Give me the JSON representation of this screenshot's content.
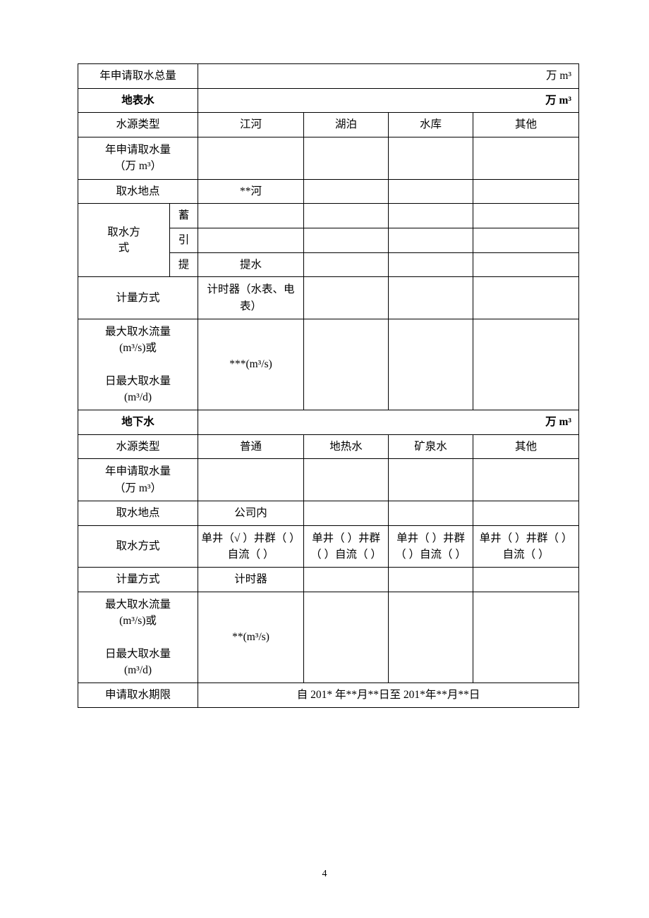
{
  "unit_wan_m3": "万 m³",
  "rows": {
    "annual_total_label": "年申请取水总量",
    "surface_water_label": "地表水",
    "source_type_label": "水源类型",
    "surface_types": {
      "river": "江河",
      "lake": "湖泊",
      "reservoir": "水库",
      "other": "其他"
    },
    "annual_apply_vol_label_l1": "年申请取水量",
    "annual_apply_vol_label_l2": "（万 m³）",
    "intake_location_label": "取水地点",
    "surface_intake_location": "**河",
    "intake_method_label": "取水方式",
    "intake_method_label_l1": "取水方",
    "intake_method_label_l2": "式",
    "method_store": "蓄",
    "method_divert": "引",
    "method_pump": "提",
    "method_pump_val": "提水",
    "measure_method_label": "计量方式",
    "surface_measure": "计时器（水表、电表）",
    "max_flow_label_l1": "最大取水流量",
    "max_flow_label_l2": "(m³/s)或",
    "max_flow_label_l3": "日最大取水量",
    "max_flow_label_l4": "(m³/d)",
    "surface_max_flow": "***(m³/s)",
    "ground_water_label": "地下水",
    "ground_types": {
      "normal": "普通",
      "geothermal": "地热水",
      "mineral": "矿泉水",
      "other": "其他"
    },
    "ground_intake_location": "公司内",
    "ground_method_col1": "单井（√ ）井群（ ）自流（ ）",
    "ground_method_col2": "单井（ ）井群（ ）自流（ ）",
    "ground_method_col3": "单井（ ）井群（ ）自流（ ）",
    "ground_method_col4": "单井（ ）井群（ ）自流（ ）",
    "ground_measure": "计时器",
    "ground_max_flow": "**(m³/s)",
    "apply_period_label": "申请取水期限",
    "apply_period_value": "自  201*  年**月**日至 201*年**月**日"
  },
  "page_number": "4",
  "colors": {
    "text": "#000000",
    "background": "#ffffff",
    "border": "#000000"
  }
}
